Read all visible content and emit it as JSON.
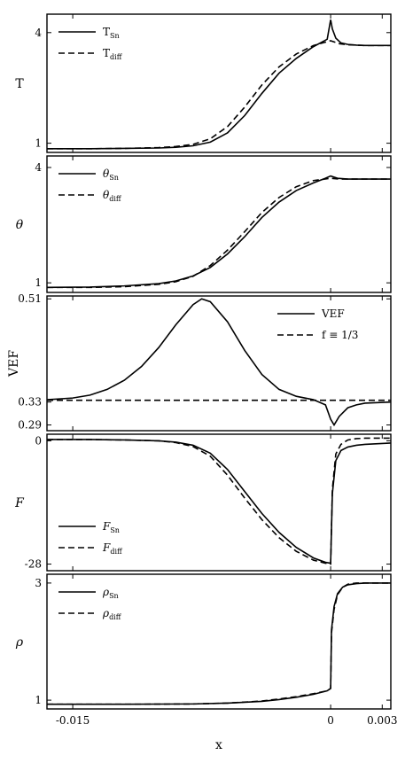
{
  "chart_data": [
    {
      "type": "line",
      "ylabel": "T",
      "ylabel_sub": "",
      "ylabel_italic": false,
      "yticks": [
        {
          "value": 1,
          "label": "1"
        },
        {
          "value": 4,
          "label": "4"
        }
      ],
      "ylim": [
        0.75,
        4.5
      ],
      "xlim": [
        -0.0165,
        0.0035
      ],
      "legend_position": "top-left",
      "series": [
        {
          "name": "T",
          "name_sub": "Sn",
          "italic": false,
          "style": "solid",
          "x": [
            -0.0165,
            -0.014,
            -0.012,
            -0.01,
            -0.009,
            -0.008,
            -0.007,
            -0.006,
            -0.005,
            -0.004,
            -0.003,
            -0.002,
            -0.001,
            -0.0002,
            0.0,
            0.0001,
            0.0003,
            0.0006,
            0.001,
            0.0015,
            0.002,
            0.0035
          ],
          "y": [
            0.85,
            0.85,
            0.86,
            0.87,
            0.89,
            0.93,
            1.03,
            1.28,
            1.75,
            2.35,
            2.9,
            3.3,
            3.62,
            3.82,
            4.35,
            4.1,
            3.85,
            3.72,
            3.68,
            3.66,
            3.65,
            3.65
          ]
        },
        {
          "name": "T",
          "name_sub": "diff",
          "italic": false,
          "style": "dashed",
          "x": [
            -0.0165,
            -0.014,
            -0.012,
            -0.01,
            -0.009,
            -0.008,
            -0.007,
            -0.006,
            -0.005,
            -0.004,
            -0.003,
            -0.002,
            -0.001,
            0.0,
            0.0005,
            0.001,
            0.002,
            0.0035
          ],
          "y": [
            0.85,
            0.85,
            0.86,
            0.88,
            0.91,
            0.97,
            1.12,
            1.45,
            1.98,
            2.58,
            3.07,
            3.42,
            3.65,
            3.78,
            3.7,
            3.67,
            3.65,
            3.65
          ]
        }
      ]
    },
    {
      "type": "line",
      "ylabel": "θ",
      "ylabel_sub": "",
      "ylabel_italic": true,
      "yticks": [
        {
          "value": 1,
          "label": "1"
        },
        {
          "value": 4,
          "label": "4"
        }
      ],
      "ylim": [
        0.75,
        4.3
      ],
      "xlim": [
        -0.0165,
        0.0035
      ],
      "legend_position": "top-left",
      "series": [
        {
          "name": "θ",
          "name_sub": "Sn",
          "italic": true,
          "style": "solid",
          "x": [
            -0.0165,
            -0.014,
            -0.012,
            -0.01,
            -0.009,
            -0.008,
            -0.007,
            -0.006,
            -0.005,
            -0.004,
            -0.003,
            -0.002,
            -0.001,
            -0.0003,
            0.0,
            0.0004,
            0.001,
            0.002,
            0.0035
          ],
          "y": [
            0.88,
            0.89,
            0.92,
            0.98,
            1.05,
            1.18,
            1.4,
            1.75,
            2.2,
            2.7,
            3.1,
            3.4,
            3.6,
            3.72,
            3.78,
            3.72,
            3.7,
            3.7,
            3.7
          ]
        },
        {
          "name": "θ",
          "name_sub": "diff",
          "italic": true,
          "style": "dashed",
          "x": [
            -0.0165,
            -0.014,
            -0.012,
            -0.01,
            -0.009,
            -0.008,
            -0.007,
            -0.006,
            -0.005,
            -0.004,
            -0.003,
            -0.002,
            -0.001,
            0.0,
            0.0005,
            0.001,
            0.002,
            0.0035
          ],
          "y": [
            0.88,
            0.88,
            0.9,
            0.96,
            1.03,
            1.17,
            1.45,
            1.85,
            2.33,
            2.83,
            3.22,
            3.5,
            3.66,
            3.72,
            3.7,
            3.7,
            3.7,
            3.7
          ]
        }
      ]
    },
    {
      "type": "line",
      "ylabel": "VEF",
      "ylabel_sub": "",
      "ylabel_italic": false,
      "yticks": [
        {
          "value": 0.29,
          "label": "0.29"
        },
        {
          "value": 0.33,
          "label": "0.33"
        },
        {
          "value": 0.51,
          "label": "0.51"
        }
      ],
      "ylim": [
        0.28,
        0.515
      ],
      "xlim": [
        -0.0165,
        0.0035
      ],
      "legend_position": "top-right",
      "series": [
        {
          "name": "VEF",
          "name_sub": "",
          "italic": false,
          "style": "solid",
          "x": [
            -0.0165,
            -0.015,
            -0.014,
            -0.013,
            -0.012,
            -0.011,
            -0.01,
            -0.009,
            -0.008,
            -0.0075,
            -0.007,
            -0.006,
            -0.005,
            -0.004,
            -0.003,
            -0.002,
            -0.001,
            -0.0003,
            0.0,
            0.0002,
            0.0005,
            0.001,
            0.0015,
            0.002,
            0.0035
          ],
          "y": [
            0.334,
            0.337,
            0.342,
            0.352,
            0.368,
            0.392,
            0.425,
            0.465,
            0.5,
            0.51,
            0.505,
            0.47,
            0.42,
            0.378,
            0.352,
            0.34,
            0.334,
            0.325,
            0.3,
            0.29,
            0.305,
            0.32,
            0.325,
            0.328,
            0.33
          ]
        },
        {
          "name": "f ≡ 1/3",
          "name_sub": "",
          "italic": false,
          "style": "dashed",
          "x": [
            -0.0165,
            0.0035
          ],
          "y": [
            0.333,
            0.333
          ]
        }
      ]
    },
    {
      "type": "line",
      "ylabel": "F",
      "ylabel_sub": "",
      "ylabel_italic": true,
      "yticks": [
        {
          "value": -28,
          "label": "-28"
        },
        {
          "value": 0,
          "label": "0"
        }
      ],
      "ylim": [
        -29.5,
        1.5
      ],
      "xlim": [
        -0.0165,
        0.0035
      ],
      "legend_position": "bottom-left",
      "series": [
        {
          "name": "F",
          "name_sub": "Sn",
          "italic": true,
          "style": "solid",
          "x": [
            -0.0165,
            -0.014,
            -0.012,
            -0.01,
            -0.009,
            -0.008,
            -0.007,
            -0.006,
            -0.005,
            -0.004,
            -0.003,
            -0.002,
            -0.001,
            -0.0003,
            0.0,
            0.0001,
            0.0003,
            0.0006,
            0.001,
            0.0015,
            0.002,
            0.0035
          ],
          "y": [
            0.3,
            0.3,
            0.2,
            0.0,
            -0.3,
            -1.0,
            -2.8,
            -6.5,
            -11.5,
            -16.5,
            -20.8,
            -24.2,
            -26.6,
            -27.6,
            -27.8,
            -12.0,
            -4.5,
            -2.2,
            -1.4,
            -1.0,
            -0.8,
            -0.5
          ]
        },
        {
          "name": "F",
          "name_sub": "diff",
          "italic": true,
          "style": "dashed",
          "x": [
            -0.0165,
            -0.014,
            -0.012,
            -0.01,
            -0.009,
            -0.008,
            -0.007,
            -0.006,
            -0.005,
            -0.004,
            -0.003,
            -0.002,
            -0.001,
            -0.0003,
            0.0,
            0.0001,
            0.0003,
            0.0006,
            0.001,
            0.0015,
            0.002,
            0.0035
          ],
          "y": [
            0.3,
            0.3,
            0.2,
            0.0,
            -0.4,
            -1.3,
            -3.5,
            -7.8,
            -13.0,
            -17.9,
            -22.0,
            -25.1,
            -27.1,
            -27.8,
            -28.0,
            -11.0,
            -3.0,
            -0.8,
            0.2,
            0.5,
            0.6,
            0.6
          ]
        }
      ]
    },
    {
      "type": "line",
      "ylabel": "ρ",
      "ylabel_sub": "",
      "ylabel_italic": true,
      "yticks": [
        {
          "value": 1,
          "label": "1"
        },
        {
          "value": 3,
          "label": "3"
        }
      ],
      "ylim": [
        0.85,
        3.15
      ],
      "xlim": [
        -0.0165,
        0.0035
      ],
      "legend_position": "top-left",
      "series": [
        {
          "name": "ρ",
          "name_sub": "Sn",
          "italic": true,
          "style": "solid",
          "x": [
            -0.0165,
            -0.012,
            -0.008,
            -0.006,
            -0.004,
            -0.003,
            -0.002,
            -0.001,
            -0.0002,
            0.0,
            5e-05,
            0.0002,
            0.0004,
            0.0007,
            0.001,
            0.0015,
            0.002,
            0.0035
          ],
          "y": [
            0.93,
            0.93,
            0.935,
            0.95,
            0.98,
            1.01,
            1.05,
            1.1,
            1.16,
            1.2,
            2.2,
            2.6,
            2.82,
            2.93,
            2.97,
            2.99,
            3.0,
            3.0
          ]
        },
        {
          "name": "ρ",
          "name_sub": "diff",
          "italic": true,
          "style": "dashed",
          "x": [
            -0.0165,
            -0.012,
            -0.008,
            -0.006,
            -0.004,
            -0.003,
            -0.002,
            -0.001,
            -0.0002,
            0.0,
            5e-05,
            0.0002,
            0.0004,
            0.0007,
            0.001,
            0.0015,
            0.002,
            0.0035
          ],
          "y": [
            0.93,
            0.93,
            0.935,
            0.95,
            0.985,
            1.02,
            1.06,
            1.11,
            1.16,
            1.2,
            2.15,
            2.55,
            2.8,
            2.93,
            2.98,
            3.0,
            3.0,
            3.0
          ]
        }
      ]
    }
  ],
  "shared_xaxis": {
    "xlabel": "x",
    "xticks": [
      {
        "value": -0.015,
        "label": "-0.015"
      },
      {
        "value": 0,
        "label": "0"
      },
      {
        "value": 0.003,
        "label": "0.003"
      }
    ]
  }
}
